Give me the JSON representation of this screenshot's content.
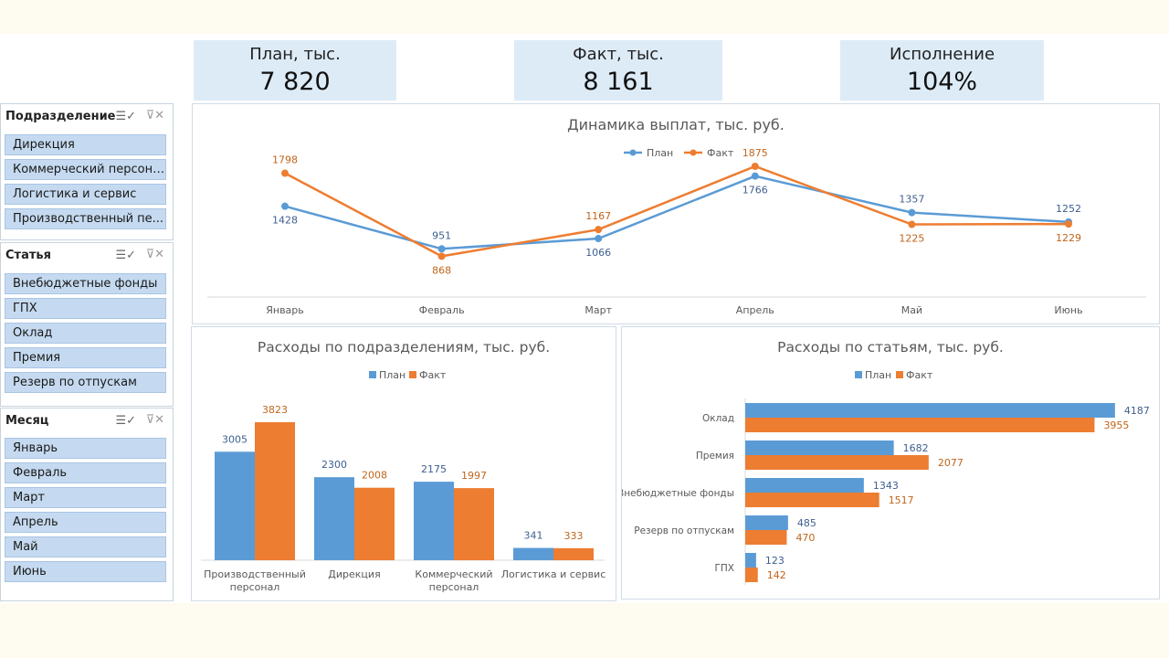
{
  "kpis": [
    {
      "title": "План, тыс.",
      "value": "7 820"
    },
    {
      "title": "Факт, тыс.",
      "value": "8 161"
    },
    {
      "title": "Исполнение",
      "value": "104%"
    }
  ],
  "slicers": [
    {
      "title": "Подразделение",
      "items": [
        "Дирекция",
        "Коммерческий персонал",
        "Логистика и сервис",
        "Производственный пе..."
      ]
    },
    {
      "title": "Статья",
      "items": [
        "Внебюджетные фонды",
        "ГПХ",
        "Оклад",
        "Премия",
        "Резерв по отпускам"
      ]
    },
    {
      "title": "Месяц",
      "items": [
        "Январь",
        "Февраль",
        "Март",
        "Апрель",
        "Май",
        "Июнь"
      ]
    }
  ],
  "colors": {
    "plan": "#5b9bd5",
    "fact": "#ed7d31",
    "plan_label": "#3e5f8f",
    "fact_label": "#c0651c"
  },
  "icons": {
    "multi_select": "multi-select-icon",
    "clear_filter": "clear-filter-icon"
  },
  "chart_data": [
    {
      "type": "line",
      "title": "Динамика выплат, тыс. руб.",
      "legend_position": "top",
      "categories": [
        "Январь",
        "Февраль",
        "Март",
        "Апрель",
        "Май",
        "Июнь"
      ],
      "series": [
        {
          "name": "План",
          "values": [
            1428,
            951,
            1066,
            1766,
            1357,
            1252
          ]
        },
        {
          "name": "Факт",
          "values": [
            1798,
            868,
            1167,
            1875,
            1225,
            1229
          ]
        }
      ]
    },
    {
      "type": "bar",
      "title": "Расходы по подразделениям, тыс. руб.",
      "legend_position": "top",
      "categories": [
        "Производственный персонал",
        "Дирекция",
        "Коммерческий персонал",
        "Логистика и сервис"
      ],
      "series": [
        {
          "name": "План",
          "values": [
            3005,
            2300,
            2175,
            341
          ]
        },
        {
          "name": "Факт",
          "values": [
            3823,
            2008,
            1997,
            333
          ]
        }
      ]
    },
    {
      "type": "bar",
      "orientation": "horizontal",
      "title": "Расходы по статьям, тыс. руб.",
      "legend_position": "top",
      "categories": [
        "Оклад",
        "Премия",
        "Внебюджетные фонды",
        "Резерв по отпускам",
        "ГПХ"
      ],
      "series": [
        {
          "name": "План",
          "values": [
            4187,
            1682,
            1343,
            485,
            123
          ]
        },
        {
          "name": "Факт",
          "values": [
            3955,
            2077,
            1517,
            470,
            142
          ]
        }
      ]
    }
  ]
}
